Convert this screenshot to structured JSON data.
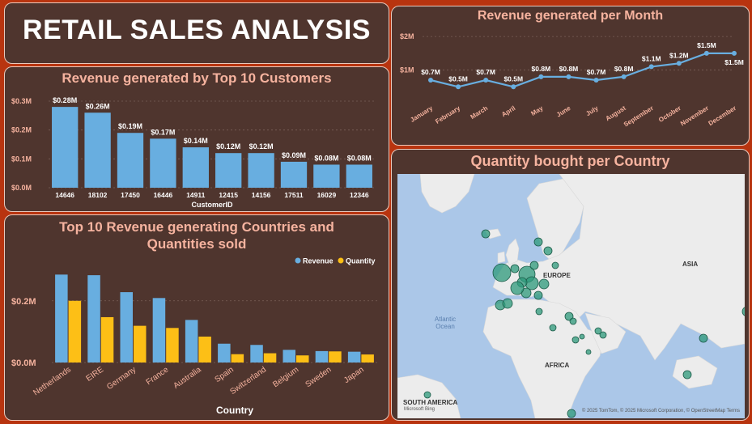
{
  "dashboard": {
    "title": "RETAIL SALES ANALYSIS"
  },
  "chart_data": [
    {
      "id": "customers",
      "type": "bar",
      "title": "Revenue generated by Top 10 Customers",
      "xlabel": "CustomerID",
      "ylabel": "",
      "categories": [
        "14646",
        "18102",
        "17450",
        "16446",
        "14911",
        "12415",
        "14156",
        "17511",
        "16029",
        "12346"
      ],
      "values": [
        0.28,
        0.26,
        0.19,
        0.17,
        0.14,
        0.12,
        0.12,
        0.09,
        0.08,
        0.08
      ],
      "data_labels": [
        "$0.28M",
        "$0.26M",
        "$0.19M",
        "$0.17M",
        "$0.14M",
        "$0.12M",
        "$0.12M",
        "$0.09M",
        "$0.08M",
        "$0.08M"
      ],
      "yticks": [
        0,
        0.1,
        0.2,
        0.3
      ],
      "ytick_labels": [
        "$0.0M",
        "$0.1M",
        "$0.2M",
        "$0.3M"
      ],
      "ylim": [
        0,
        0.3
      ],
      "grid": true,
      "color": "#68aee0"
    },
    {
      "id": "countries",
      "type": "bar",
      "title": "Top 10 Revenue generating Countries and Quantities sold",
      "xlabel": "Country",
      "ylabel": "",
      "categories": [
        "Netherlands",
        "EIRE",
        "Germany",
        "France",
        "Australia",
        "Spain",
        "Switzerland",
        "Belgium",
        "Sweden",
        "Japan"
      ],
      "series": [
        {
          "name": "Revenue",
          "color": "#68aee0",
          "values": [
            0.285,
            0.283,
            0.228,
            0.209,
            0.138,
            0.061,
            0.057,
            0.041,
            0.037,
            0.035
          ]
        },
        {
          "name": "Quantity",
          "color": "#fdbf16",
          "values": [
            0.2,
            0.147,
            0.119,
            0.112,
            0.084,
            0.027,
            0.03,
            0.023,
            0.036,
            0.026
          ]
        }
      ],
      "yticks": [
        0,
        0.2
      ],
      "ytick_labels": [
        "$0.0M",
        "$0.2M"
      ],
      "ylim": [
        0,
        0.32
      ],
      "grid": true,
      "legend": "top-right"
    },
    {
      "id": "monthly",
      "type": "line",
      "title": "Revenue generated per Month",
      "xlabel": "",
      "ylabel": "",
      "categories": [
        "January",
        "February",
        "March",
        "April",
        "May",
        "June",
        "July",
        "August",
        "September",
        "October",
        "November",
        "December"
      ],
      "values": [
        0.7,
        0.5,
        0.7,
        0.5,
        0.8,
        0.8,
        0.7,
        0.8,
        1.1,
        1.2,
        1.5,
        1.5
      ],
      "data_labels": [
        "$0.7M",
        "$0.5M",
        "$0.7M",
        "$0.5M",
        "$0.8M",
        "$0.8M",
        "$0.7M",
        "$0.8M",
        "$1.1M",
        "$1.2M",
        "$1.5M",
        "$1.5M"
      ],
      "yticks": [
        1,
        2
      ],
      "ytick_labels": [
        "$1M",
        "$2M"
      ],
      "ylim": [
        0,
        2.1
      ],
      "grid": true,
      "color": "#68aee0"
    }
  ],
  "map": {
    "title": "Quantity bought per Country",
    "labels": {
      "europe": "EUROPE",
      "asia": "ASIA",
      "africa": "AFRICA",
      "south_america": "SOUTH AMERICA",
      "ocean": "Atlantic Ocean"
    },
    "bing_label": "Microsoft Bing",
    "attribution": "© 2025 TomTom, © 2025 Microsoft Corporation, © OpenStreetMap  Terms",
    "bubble_color": "#2e9a7b"
  }
}
